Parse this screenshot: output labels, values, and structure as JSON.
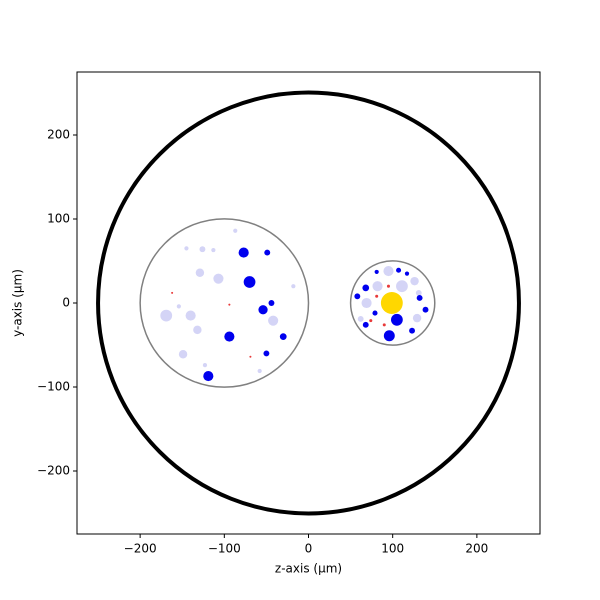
{
  "chart_data": {
    "type": "scatter",
    "xlabel": "z-axis (µm)",
    "ylabel": "y-axis (µm)",
    "xlim": [
      -275,
      275
    ],
    "ylim": [
      -275,
      275
    ],
    "xticks": [
      {
        "value": -200,
        "label": "−200"
      },
      {
        "value": -100,
        "label": "−100"
      },
      0,
      100,
      200
    ],
    "yticks": [
      {
        "value": -200,
        "label": "−200"
      },
      {
        "value": -100,
        "label": "−100"
      },
      0,
      100,
      200
    ],
    "outlines": [
      {
        "x": 0,
        "y": 0,
        "r": 250,
        "color": "#000000",
        "linewidth": 4
      },
      {
        "x": -100,
        "y": 0,
        "r": 100,
        "color": "#808080",
        "linewidth": 1.5
      },
      {
        "x": 100,
        "y": 0,
        "r": 50,
        "color": "#808080",
        "linewidth": 1.5
      }
    ],
    "series": [
      {
        "color": "#d4d4f6",
        "x": [
          -169,
          -140,
          -107,
          -129,
          -132,
          -149,
          -42,
          -126,
          -113,
          -145,
          -154,
          -123,
          -58,
          -87,
          -18,
          95,
          82,
          111,
          69,
          126,
          62,
          129,
          131
        ],
        "y": [
          -15,
          -15,
          29,
          36,
          -32,
          -61,
          -21,
          64,
          63,
          65,
          -4,
          -74,
          -81,
          86,
          20,
          38,
          20,
          20,
          0,
          26,
          -19,
          -18,
          12
        ],
        "r": [
          7,
          6,
          6,
          5,
          5,
          5,
          6,
          3.5,
          2.5,
          2.5,
          2.5,
          2.5,
          2.5,
          2.5,
          2.5,
          6,
          6,
          7,
          6,
          5,
          3.5,
          5,
          3.5
        ]
      },
      {
        "color": "#e83a3a",
        "x": [
          95,
          90,
          81,
          74,
          -94,
          -162,
          -69
        ],
        "y": [
          20,
          -26,
          8,
          -21,
          -2,
          12,
          -64
        ],
        "r": [
          1.8,
          1.8,
          1.8,
          1.8,
          1.2,
          1.2,
          1.2
        ]
      },
      {
        "color": "#0000ee",
        "x": [
          -77,
          -49,
          -70,
          -44,
          -54,
          -94,
          -30,
          -50,
          -119,
          81,
          107,
          117,
          68,
          58,
          79,
          68,
          105,
          96,
          123,
          139,
          132
        ],
        "y": [
          60,
          60,
          25,
          0,
          -8,
          -40,
          -40,
          -60,
          -87,
          37,
          39,
          35,
          18,
          8,
          -12,
          -26,
          -20,
          -39,
          -33,
          -8,
          6
        ],
        "r": [
          6,
          3.5,
          7,
          3.5,
          5.5,
          6,
          4,
          3.5,
          6,
          2.5,
          3,
          2.5,
          4,
          3.5,
          3,
          3.5,
          7,
          6.5,
          3.5,
          3.5,
          3.5
        ]
      },
      {
        "color": "#ffd700",
        "x": [
          99
        ],
        "y": [
          0
        ],
        "r": [
          13
        ]
      }
    ]
  }
}
